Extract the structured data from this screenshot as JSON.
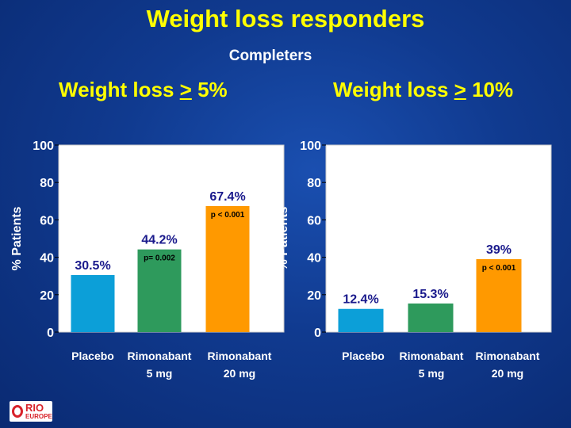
{
  "title": "Weight loss responders",
  "subtitle": "Completers",
  "panels": [
    {
      "title_prefix": "Weight loss ",
      "title_symbol": ">",
      "title_suffix": " 5%"
    },
    {
      "title_prefix": "Weight loss ",
      "title_symbol": ">",
      "title_suffix": " 10%"
    }
  ],
  "logo": {
    "line1": "RIO",
    "line2": "EUROPE"
  },
  "colors": {
    "placebo": "#0c9fd8",
    "rimonabant_5": "#2e9a5c",
    "rimonabant_20": "#ff9900",
    "label": "#1a1a8c"
  },
  "chart_data": [
    {
      "type": "bar",
      "title": "Weight loss > 5%",
      "ylabel": "% Patients",
      "ylim": [
        0,
        100
      ],
      "yticks": [
        0,
        20,
        40,
        60,
        80,
        100
      ],
      "categories": [
        [
          "Placebo"
        ],
        [
          "Rimonabant",
          "5 mg"
        ],
        [
          "Rimonabant",
          "20 mg"
        ]
      ],
      "values": [
        30.5,
        44.2,
        67.4
      ],
      "data_labels": [
        "30.5%",
        "44.2%",
        "67.4%"
      ],
      "annotations": [
        "",
        "p= 0.002",
        "p < 0.001"
      ]
    },
    {
      "type": "bar",
      "title": "Weight loss > 10%",
      "ylabel": "% Patients",
      "ylim": [
        0,
        100
      ],
      "yticks": [
        0,
        20,
        40,
        60,
        80,
        100
      ],
      "categories": [
        [
          "Placebo"
        ],
        [
          "Rimonabant",
          "5 mg"
        ],
        [
          "Rimonabant",
          "20 mg"
        ]
      ],
      "values": [
        12.4,
        15.3,
        39
      ],
      "data_labels": [
        "12.4%",
        "15.3%",
        "39%"
      ],
      "annotations": [
        "",
        "",
        "p < 0.001"
      ]
    }
  ]
}
